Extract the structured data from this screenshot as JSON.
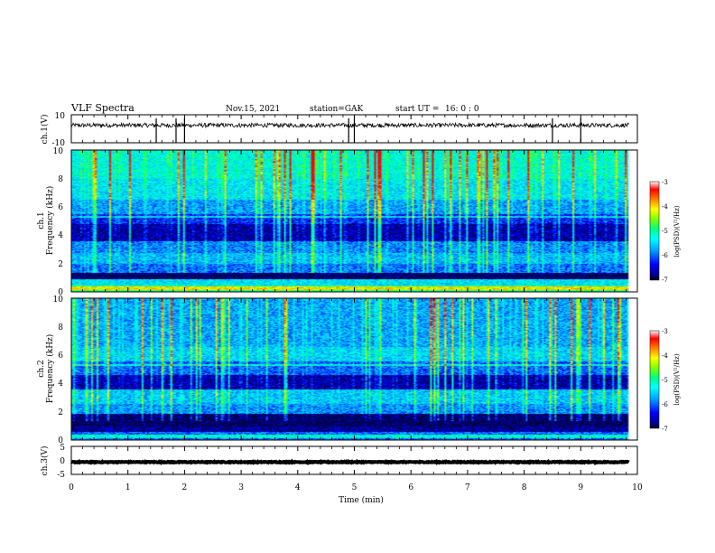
{
  "header": {
    "title": "VLF Spectra",
    "date": "Nov.15, 2021",
    "station": "station=GAK",
    "start_label": "start  UT  =",
    "start_time": "16: 0  : 0"
  },
  "colors": {
    "spectrogram_scale": [
      "#000080",
      "#0000ff",
      "#00a0ff",
      "#00ffff",
      "#00ff80",
      "#80ff00",
      "#ffff00",
      "#ff8000",
      "#ff0000",
      "#ffffff"
    ],
    "waveform": "#000000"
  },
  "chart_data": [
    {
      "type": "line",
      "name": "ch1-waveform",
      "ylabel": "ch.1(V)",
      "ylim": [
        -10,
        10
      ],
      "yticks": [
        "10",
        "-10"
      ],
      "xlim": [
        0,
        10
      ],
      "baseline": 2.5,
      "noise_amplitude": 1.5
    },
    {
      "type": "heatmap",
      "name": "ch1-spectrogram",
      "ylabel_line1": "ch.1",
      "ylabel_line2": "Frequency  (kHz)",
      "ylim": [
        0,
        10
      ],
      "yticks": [
        "0",
        "2",
        "4",
        "6",
        "8",
        "10"
      ],
      "xlim": [
        0,
        10
      ],
      "data_end_min": 9.85,
      "bands": [
        {
          "from": 0.0,
          "to": 0.5,
          "level": 0.6
        },
        {
          "from": 0.5,
          "to": 0.9,
          "level": 0.45
        },
        {
          "from": 0.9,
          "to": 1.4,
          "level": 0.05
        },
        {
          "from": 1.4,
          "to": 2.0,
          "level": 0.3
        },
        {
          "from": 2.0,
          "to": 2.8,
          "level": 0.38
        },
        {
          "from": 2.8,
          "to": 3.6,
          "level": 0.32
        },
        {
          "from": 3.6,
          "to": 4.8,
          "level": 0.12
        },
        {
          "from": 4.8,
          "to": 5.5,
          "level": 0.22
        },
        {
          "from": 5.5,
          "to": 6.5,
          "level": 0.35
        },
        {
          "from": 6.5,
          "to": 8.0,
          "level": 0.45
        },
        {
          "from": 8.0,
          "to": 10.0,
          "level": 0.5
        }
      ],
      "colorbar": {
        "label": "log(PSD)(V²/Hz)",
        "range": [
          -7,
          -3
        ],
        "ticks": [
          "-3",
          "-4",
          "-5",
          "-6",
          "-7"
        ]
      }
    },
    {
      "type": "heatmap",
      "name": "ch2-spectrogram",
      "ylabel_line1": "ch.2",
      "ylabel_line2": "Frequency  (kHz)",
      "ylim": [
        0,
        10
      ],
      "yticks": [
        "0",
        "2",
        "4",
        "6",
        "8",
        "10"
      ],
      "xlim": [
        0,
        10
      ],
      "data_end_min": 9.85,
      "bands": [
        {
          "from": 0.0,
          "to": 0.6,
          "level": 0.3
        },
        {
          "from": 0.6,
          "to": 1.0,
          "level": 0.1
        },
        {
          "from": 1.0,
          "to": 1.9,
          "level": 0.04
        },
        {
          "from": 1.9,
          "to": 2.6,
          "level": 0.33
        },
        {
          "from": 2.6,
          "to": 3.6,
          "level": 0.4
        },
        {
          "from": 3.6,
          "to": 4.6,
          "level": 0.12
        },
        {
          "from": 4.6,
          "to": 5.6,
          "level": 0.28
        },
        {
          "from": 5.6,
          "to": 6.6,
          "level": 0.42
        },
        {
          "from": 6.6,
          "to": 10.0,
          "level": 0.36
        }
      ],
      "colorbar": {
        "label": "log(PSD)(V²/Hz)",
        "range": [
          -7,
          -3
        ],
        "ticks": [
          "-3",
          "-4",
          "-5",
          "-6",
          "-7"
        ]
      }
    },
    {
      "type": "line",
      "name": "ch3-waveform",
      "ylabel": "ch.3(V)",
      "ylim": [
        -5,
        5
      ],
      "yticks": [
        "5",
        "0",
        "-5"
      ],
      "xlim": [
        0,
        10
      ],
      "baseline": -0.6,
      "noise_amplitude": 0.15
    }
  ],
  "xaxis": {
    "label": "Time  (min)",
    "ticks": [
      "0",
      "1",
      "2",
      "3",
      "4",
      "5",
      "6",
      "7",
      "8",
      "9",
      "10"
    ]
  }
}
